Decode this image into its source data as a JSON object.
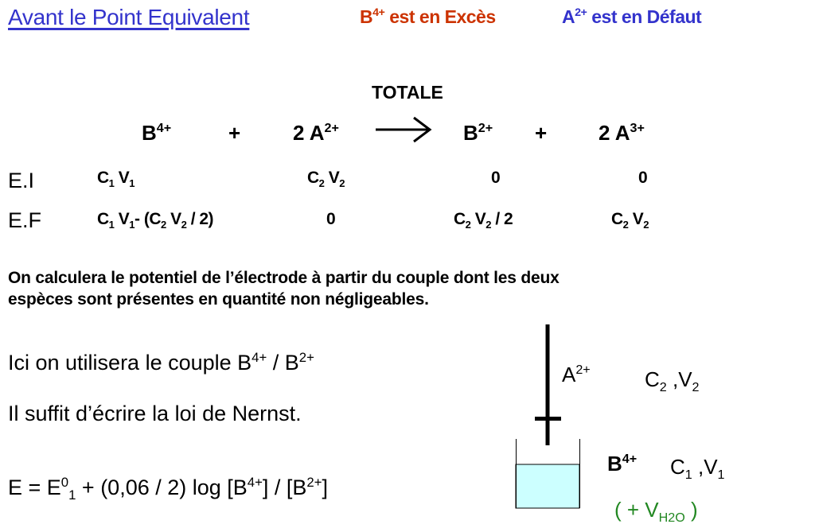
{
  "header": {
    "title": "Avant le Point Equivalent",
    "excess": {
      "base": "B",
      "sup": "4+",
      "rest": " est en Excès",
      "color": "#cc3300"
    },
    "deficit": {
      "base": "A",
      "sup": "2+",
      "rest": " est en Défaut",
      "color": "#3333cc"
    }
  },
  "reaction": {
    "label": "TOTALE",
    "reactant1": {
      "base": "B",
      "sup": "4+"
    },
    "plus1": "+",
    "reactant2": {
      "base": "2 A",
      "sup": "2+"
    },
    "arrow_icon": "right-arrow",
    "product1": {
      "base": "B",
      "sup": "2+"
    },
    "plus2": "+",
    "product2": {
      "base": "2 A",
      "sup": "3+"
    }
  },
  "table": {
    "ei": {
      "label": "E.I",
      "c1": [
        "C",
        "1",
        " V",
        "1"
      ],
      "c2": [
        "C",
        "2",
        " V",
        "2"
      ],
      "c3": "0",
      "c4": "0"
    },
    "ef": {
      "label": "E.F",
      "c1": [
        "C",
        "1",
        " V",
        "1",
        "- (C",
        "2",
        " V",
        "2",
        " / 2)"
      ],
      "c2": "0",
      "c3": [
        "C",
        "2",
        " V",
        "2",
        " / 2"
      ],
      "c4": [
        "C",
        "2",
        " V",
        "2"
      ]
    }
  },
  "paragraph": {
    "line1": "On calculera le potentiel de l’électrode à partir du couple dont les deux",
    "line2": "espèces sont présentes en quantité non négligeables."
  },
  "couple": {
    "text": "Ici on utilisera le couple B",
    "sup1": "4+",
    "mid": " / B",
    "sup2": "2+"
  },
  "nernst_note": "Il suffit d’écrire la loi de Nernst.",
  "equation": {
    "p1": "E = E",
    "sup": "0",
    "sub": "1",
    "p2": " + (0,06 / 2) log [B",
    "sup2": "4+",
    "p3": "] / [B",
    "sup3": "2+",
    "p4": "]"
  },
  "diagram": {
    "burette": {
      "species": "A",
      "sup": "2+",
      "c": "C",
      "csub": "2",
      "v": " ,V",
      "vsub": "2"
    },
    "beaker": {
      "species": "B",
      "sup": "4+",
      "c": "C",
      "csub": "1",
      "v": " ,V",
      "vsub": "1",
      "liquid_color": "#ccffff"
    },
    "water": {
      "open": "( + V",
      "sub": "H2O",
      "close": " )",
      "color": "#228822"
    }
  }
}
